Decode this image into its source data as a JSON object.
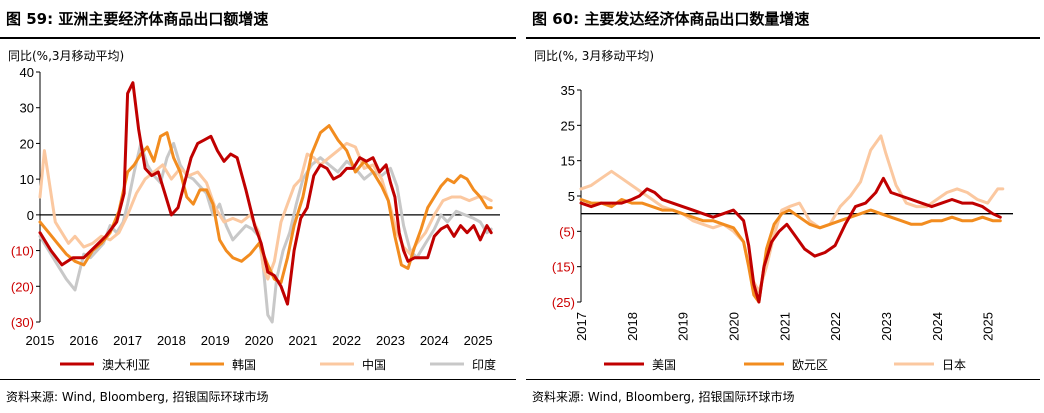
{
  "source_text": "资料来源: Wind, Bloomberg, 招银国际环球市场",
  "chart_data": [
    {
      "type": "line",
      "title": "图 59: 亚洲主要经济体商品出口额增速",
      "ylabel": "同比(%,3月移动平均)",
      "ylim": [
        -30,
        40
      ],
      "y_ticks": [
        40,
        30,
        20,
        10,
        0,
        -10,
        -20,
        -30
      ],
      "y_tick_labels": [
        "40",
        "30",
        "20",
        "10",
        "0",
        "(10)",
        "(20)",
        "(30)"
      ],
      "xlim": [
        2015,
        2025.5
      ],
      "x_ticks": [
        2015,
        2016,
        2017,
        2018,
        2019,
        2020,
        2021,
        2022,
        2023,
        2024,
        2025
      ],
      "x_tick_labels": [
        "2015",
        "2016",
        "2017",
        "2018",
        "2019",
        "2020",
        "2021",
        "2022",
        "2023",
        "2024",
        "2025"
      ],
      "legend_position": "bottom",
      "colors": {
        "negative_tick": "#cc0000",
        "axis": "#000000"
      },
      "series": [
        {
          "name": "澳大利亚",
          "color": "#c00000",
          "x": [
            2015.0,
            2015.25,
            2015.5,
            2015.75,
            2016.0,
            2016.25,
            2016.5,
            2016.75,
            2016.92,
            2017.0,
            2017.12,
            2017.25,
            2017.4,
            2017.55,
            2017.7,
            2017.85,
            2018.0,
            2018.15,
            2018.3,
            2018.45,
            2018.6,
            2018.75,
            2018.9,
            2019.05,
            2019.2,
            2019.35,
            2019.5,
            2019.7,
            2019.9,
            2020.05,
            2020.2,
            2020.35,
            2020.5,
            2020.65,
            2020.8,
            2020.95,
            2021.1,
            2021.25,
            2021.4,
            2021.55,
            2021.7,
            2021.85,
            2022.0,
            2022.15,
            2022.3,
            2022.45,
            2022.6,
            2022.75,
            2022.9,
            2023.0,
            2023.1,
            2023.2,
            2023.3,
            2023.4,
            2023.55,
            2023.7,
            2023.85,
            2024.0,
            2024.15,
            2024.3,
            2024.45,
            2024.6,
            2024.75,
            2024.9,
            2025.05,
            2025.2,
            2025.3
          ],
          "y": [
            -5,
            -10,
            -14,
            -12,
            -12,
            -9,
            -6,
            -2,
            6,
            34,
            37,
            24,
            13,
            11,
            12,
            6,
            0,
            2,
            9,
            16,
            20,
            21,
            22,
            18,
            15,
            17,
            16,
            7,
            -3,
            -8,
            -16,
            -17,
            -20,
            -25,
            -10,
            -1,
            2,
            11,
            14,
            13,
            10,
            11,
            13,
            13,
            16,
            15,
            16,
            12,
            14,
            9,
            5,
            -5,
            -10,
            -13,
            -12,
            -12,
            -12,
            -6,
            -4,
            -3,
            -6,
            -3,
            -5,
            -3,
            -7,
            -3,
            -5
          ]
        },
        {
          "name": "韩国",
          "color": "#f28c1f",
          "x": [
            2015.0,
            2015.2,
            2015.4,
            2015.6,
            2015.8,
            2016.0,
            2016.2,
            2016.4,
            2016.6,
            2016.8,
            2017.0,
            2017.15,
            2017.3,
            2017.45,
            2017.6,
            2017.75,
            2017.9,
            2018.05,
            2018.2,
            2018.35,
            2018.5,
            2018.65,
            2018.8,
            2018.95,
            2019.1,
            2019.25,
            2019.4,
            2019.6,
            2019.8,
            2020.0,
            2020.2,
            2020.35,
            2020.5,
            2020.65,
            2020.8,
            2021.0,
            2021.2,
            2021.4,
            2021.6,
            2021.8,
            2022.0,
            2022.2,
            2022.4,
            2022.6,
            2022.8,
            2022.95,
            2023.1,
            2023.25,
            2023.4,
            2023.55,
            2023.7,
            2023.85,
            2024.0,
            2024.15,
            2024.3,
            2024.45,
            2024.6,
            2024.75,
            2024.9,
            2025.05,
            2025.2,
            2025.3
          ],
          "y": [
            -2,
            -5,
            -8,
            -11,
            -13,
            -14,
            -10,
            -8,
            -5,
            1,
            12,
            14,
            17,
            19,
            15,
            22,
            23,
            16,
            12,
            5,
            3,
            7,
            7,
            3,
            -7,
            -10,
            -12,
            -13,
            -11,
            -8,
            -14,
            -18,
            -19,
            -12,
            -3,
            5,
            17,
            23,
            25,
            21,
            18,
            12,
            15,
            12,
            8,
            4,
            -6,
            -14,
            -15,
            -9,
            -4,
            2,
            5,
            8,
            10,
            9,
            11,
            10,
            7,
            5,
            2,
            2
          ]
        },
        {
          "name": "中国",
          "color": "#fbc8a0",
          "x": [
            2015.0,
            2015.1,
            2015.2,
            2015.35,
            2015.5,
            2015.65,
            2015.8,
            2016.0,
            2016.2,
            2016.4,
            2016.6,
            2016.8,
            2017.0,
            2017.2,
            2017.4,
            2017.6,
            2017.8,
            2018.0,
            2018.2,
            2018.4,
            2018.6,
            2018.8,
            2019.0,
            2019.2,
            2019.4,
            2019.6,
            2019.8,
            2020.0,
            2020.1,
            2020.2,
            2020.35,
            2020.5,
            2020.65,
            2020.8,
            2020.95,
            2021.1,
            2021.25,
            2021.4,
            2021.6,
            2021.8,
            2022.0,
            2022.2,
            2022.4,
            2022.6,
            2022.8,
            2023.0,
            2023.15,
            2023.3,
            2023.45,
            2023.6,
            2023.8,
            2024.0,
            2024.2,
            2024.4,
            2024.6,
            2024.8,
            2025.0,
            2025.15,
            2025.3
          ],
          "y": [
            5,
            18,
            10,
            -2,
            -5,
            -8,
            -6,
            -9,
            -8,
            -6,
            -7,
            -5,
            0,
            6,
            10,
            12,
            14,
            10,
            13,
            11,
            12,
            9,
            2,
            -2,
            -1,
            -2,
            0,
            -5,
            -15,
            -18,
            -13,
            -2,
            3,
            8,
            10,
            17,
            16,
            14,
            16,
            18,
            20,
            19,
            13,
            14,
            10,
            2,
            -5,
            -9,
            -11,
            -8,
            -5,
            0,
            4,
            5,
            5,
            4,
            5,
            5,
            4
          ]
        },
        {
          "name": "印度",
          "color": "#c8c8c8",
          "x": [
            2015.0,
            2015.2,
            2015.4,
            2015.6,
            2015.8,
            2016.0,
            2016.15,
            2016.3,
            2016.45,
            2016.6,
            2016.75,
            2016.9,
            2017.0,
            2017.15,
            2017.3,
            2017.45,
            2017.6,
            2017.75,
            2017.9,
            2018.05,
            2018.2,
            2018.35,
            2018.5,
            2018.65,
            2018.8,
            2018.95,
            2019.1,
            2019.25,
            2019.4,
            2019.55,
            2019.7,
            2019.85,
            2020.0,
            2020.1,
            2020.2,
            2020.3,
            2020.4,
            2020.55,
            2020.7,
            2020.85,
            2021.0,
            2021.2,
            2021.4,
            2021.6,
            2021.8,
            2022.0,
            2022.2,
            2022.4,
            2022.6,
            2022.8,
            2023.0,
            2023.15,
            2023.3,
            2023.45,
            2023.6,
            2023.8,
            2024.0,
            2024.15,
            2024.3,
            2024.5,
            2024.7,
            2024.9,
            2025.05,
            2025.2,
            2025.3
          ],
          "y": [
            -6,
            -10,
            -14,
            -18,
            -21,
            -11,
            -12,
            -10,
            -8,
            -3,
            -5,
            -2,
            3,
            12,
            20,
            14,
            11,
            9,
            16,
            20,
            14,
            11,
            10,
            8,
            6,
            0,
            3,
            -3,
            -7,
            -5,
            -3,
            -4,
            -6,
            -15,
            -28,
            -30,
            -18,
            -10,
            -5,
            3,
            10,
            14,
            16,
            14,
            12,
            15,
            13,
            10,
            12,
            11,
            13,
            8,
            -3,
            -10,
            -12,
            -8,
            -4,
            0,
            -2,
            1,
            0,
            -1,
            -2,
            -5,
            -4
          ]
        }
      ]
    },
    {
      "type": "line",
      "title": "图 60: 主要发达经济体商品出口数量增速",
      "ylabel": "同比(%, 3月移动平均)",
      "ylim": [
        -25,
        35
      ],
      "y_ticks": [
        35,
        25,
        15,
        5,
        -5,
        -15,
        -25
      ],
      "y_tick_labels": [
        "35",
        "25",
        "15",
        "5",
        "(5)",
        "(15)",
        "(25)"
      ],
      "xlim": [
        2017,
        2025.5
      ],
      "x_ticks": [
        2017,
        2018,
        2019,
        2020,
        2021,
        2022,
        2023,
        2024,
        2025
      ],
      "x_tick_labels": [
        "2017",
        "2018",
        "2019",
        "2020",
        "2021",
        "2022",
        "2023",
        "2024",
        "2025"
      ],
      "legend_position": "bottom",
      "colors": {
        "negative_tick": "#cc0000",
        "axis": "#000000"
      },
      "series": [
        {
          "name": "美国",
          "color": "#c00000",
          "x": [
            2017.0,
            2017.2,
            2017.4,
            2017.6,
            2017.8,
            2018.0,
            2018.15,
            2018.3,
            2018.45,
            2018.6,
            2018.8,
            2019.0,
            2019.2,
            2019.4,
            2019.6,
            2019.8,
            2020.0,
            2020.2,
            2020.3,
            2020.4,
            2020.5,
            2020.6,
            2020.75,
            2020.9,
            2021.05,
            2021.2,
            2021.4,
            2021.6,
            2021.8,
            2022.0,
            2022.2,
            2022.4,
            2022.6,
            2022.8,
            2022.95,
            2023.1,
            2023.3,
            2023.5,
            2023.7,
            2023.9,
            2024.1,
            2024.3,
            2024.5,
            2024.7,
            2024.9,
            2025.1,
            2025.25
          ],
          "y": [
            3,
            2,
            3,
            3,
            3,
            4,
            5,
            7,
            6,
            4,
            3,
            2,
            1,
            0,
            -1,
            0,
            1,
            -2,
            -9,
            -20,
            -25,
            -15,
            -8,
            -5,
            -3,
            -6,
            -10,
            -12,
            -11,
            -9,
            -3,
            2,
            3,
            6,
            10,
            6,
            5,
            4,
            3,
            2,
            3,
            4,
            3,
            3,
            2,
            0,
            -1
          ]
        },
        {
          "name": "欧元区",
          "color": "#f28c1f",
          "x": [
            2017.0,
            2017.2,
            2017.4,
            2017.6,
            2017.8,
            2018.0,
            2018.2,
            2018.4,
            2018.6,
            2018.8,
            2019.0,
            2019.2,
            2019.4,
            2019.6,
            2019.8,
            2020.0,
            2020.2,
            2020.3,
            2020.4,
            2020.5,
            2020.65,
            2020.8,
            2020.95,
            2021.1,
            2021.3,
            2021.5,
            2021.7,
            2021.9,
            2022.1,
            2022.3,
            2022.5,
            2022.7,
            2022.9,
            2023.1,
            2023.3,
            2023.5,
            2023.7,
            2023.9,
            2024.1,
            2024.3,
            2024.5,
            2024.7,
            2024.9,
            2025.1,
            2025.25
          ],
          "y": [
            4,
            3,
            3,
            2,
            4,
            3,
            3,
            2,
            1,
            1,
            0,
            -1,
            -2,
            -2,
            -3,
            -4,
            -8,
            -15,
            -23,
            -25,
            -10,
            -3,
            0,
            1,
            -1,
            -3,
            -4,
            -3,
            -2,
            -1,
            0,
            1,
            0,
            -1,
            -2,
            -3,
            -3,
            -2,
            -2,
            -1,
            -2,
            -2,
            -1,
            -2,
            -2
          ]
        },
        {
          "name": "日本",
          "color": "#fbc8a0",
          "x": [
            2017.0,
            2017.2,
            2017.4,
            2017.6,
            2017.8,
            2018.0,
            2018.2,
            2018.4,
            2018.6,
            2018.8,
            2019.0,
            2019.2,
            2019.4,
            2019.6,
            2019.8,
            2020.0,
            2020.2,
            2020.35,
            2020.5,
            2020.65,
            2020.8,
            2020.95,
            2021.1,
            2021.3,
            2021.5,
            2021.7,
            2021.9,
            2022.1,
            2022.3,
            2022.5,
            2022.7,
            2022.9,
            2023.0,
            2023.2,
            2023.4,
            2023.6,
            2023.8,
            2024.0,
            2024.2,
            2024.4,
            2024.6,
            2024.8,
            2025.0,
            2025.2,
            2025.3
          ],
          "y": [
            7,
            8,
            10,
            12,
            10,
            8,
            6,
            4,
            2,
            1,
            0,
            -2,
            -3,
            -4,
            -3,
            -5,
            -8,
            -18,
            -22,
            -15,
            -6,
            1,
            2,
            3,
            -2,
            -4,
            -3,
            2,
            5,
            9,
            18,
            22,
            17,
            8,
            3,
            2,
            2,
            4,
            6,
            7,
            6,
            4,
            3,
            7,
            7
          ]
        }
      ]
    }
  ]
}
